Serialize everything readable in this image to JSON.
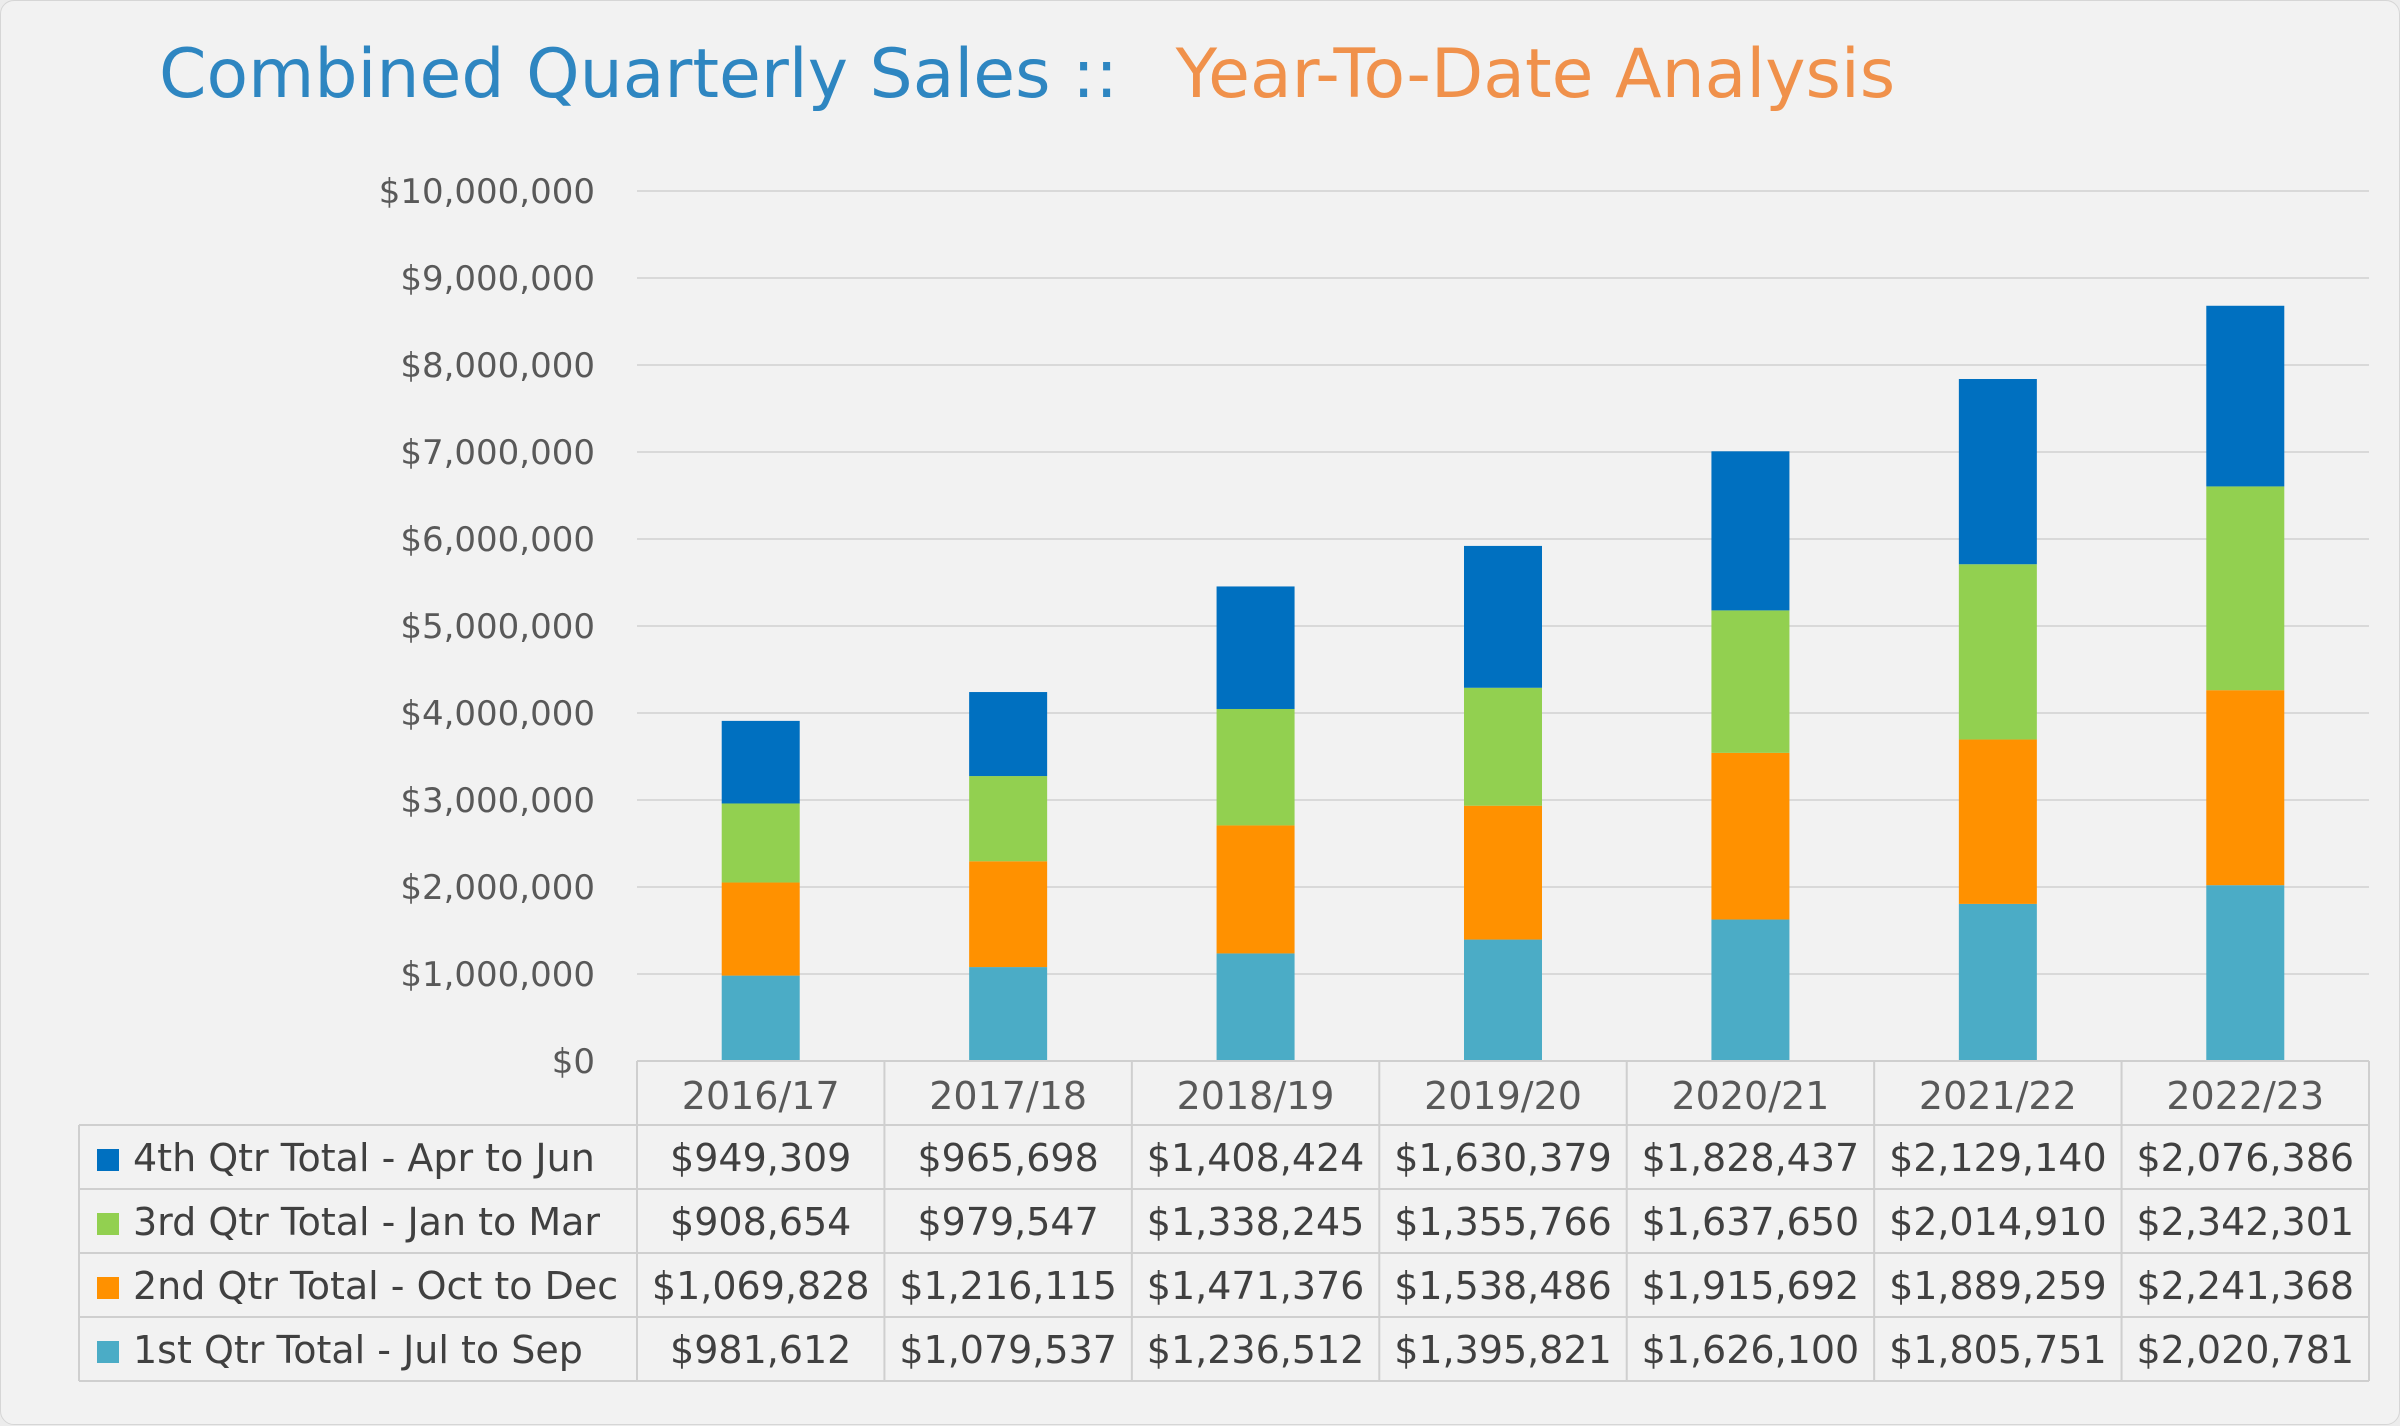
{
  "title": {
    "left": "Combined Quarterly Sales ::",
    "right": "Year-To-Date Analysis"
  },
  "colors": {
    "title_left": "#2e86c1",
    "title_right": "#f0914b",
    "grid": "#d9d9d9",
    "table_line": "#cfcfcf"
  },
  "chart_data": {
    "type": "bar",
    "stacked": true,
    "title": "Combined Quarterly Sales :: Year-To-Date Analysis",
    "xlabel": "",
    "ylabel": "",
    "ylim": [
      0,
      10000000
    ],
    "ytick_step": 1000000,
    "ytick_labels": [
      "$0",
      "$1,000,000",
      "$2,000,000",
      "$3,000,000",
      "$4,000,000",
      "$5,000,000",
      "$6,000,000",
      "$7,000,000",
      "$8,000,000",
      "$9,000,000",
      "$10,000,000"
    ],
    "grid": true,
    "legend_position": "data-table-left",
    "categories": [
      "2016/17",
      "2017/18",
      "2018/19",
      "2019/20",
      "2020/21",
      "2021/22",
      "2022/23"
    ],
    "series": [
      {
        "name": "1st Qtr Total - Jul to Sep",
        "color": "#4bacc6",
        "values": [
          981612,
          1079537,
          1236512,
          1395821,
          1626100,
          1805751,
          2020781
        ],
        "labels": [
          "$981,612",
          "$1,079,537",
          "$1,236,512",
          "$1,395,821",
          "$1,626,100",
          "$1,805,751",
          "$2,020,781"
        ]
      },
      {
        "name": "2nd Qtr Total - Oct to Dec",
        "color": "#ff9100",
        "values": [
          1069828,
          1216115,
          1471376,
          1538486,
          1915692,
          1889259,
          2241368
        ],
        "labels": [
          "$1,069,828",
          "$1,216,115",
          "$1,471,376",
          "$1,538,486",
          "$1,915,692",
          "$1,889,259",
          "$2,241,368"
        ]
      },
      {
        "name": "3rd Qtr Total - Jan to Mar",
        "color": "#92d050",
        "values": [
          908654,
          979547,
          1338245,
          1355766,
          1637650,
          2014910,
          2342301
        ],
        "labels": [
          "$908,654",
          "$979,547",
          "$1,338,245",
          "$1,355,766",
          "$1,637,650",
          "$2,014,910",
          "$2,342,301"
        ]
      },
      {
        "name": "4th Qtr Total - Apr to Jun",
        "color": "#0070c0",
        "values": [
          949309,
          965698,
          1408424,
          1630379,
          1828437,
          2129140,
          2076386
        ],
        "labels": [
          "$949,309",
          "$965,698",
          "$1,408,424",
          "$1,630,379",
          "$1,828,437",
          "$2,129,140",
          "$2,076,386"
        ]
      }
    ],
    "table_row_order": [
      3,
      2,
      1,
      0
    ]
  }
}
